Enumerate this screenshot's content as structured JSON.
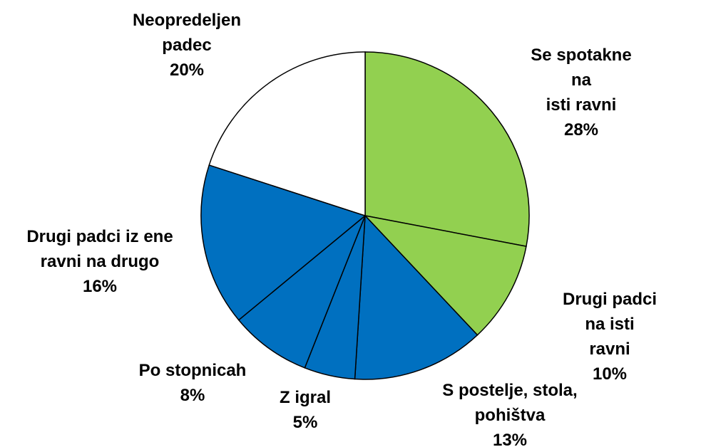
{
  "chart_data": {
    "type": "pie",
    "categories": [
      "Se spotakne na\nisti ravni",
      "Drugi padci na isti\nravni",
      "S postelje, stola,\npohištva",
      "Z igral",
      "Po stopnicah",
      "Drugi padci iz ene\nravni na drugo",
      "Neopredeljen\npadec"
    ],
    "values": [
      28,
      10,
      13,
      5,
      8,
      16,
      20
    ],
    "value_labels": [
      "28%",
      "10%",
      "13%",
      "5%",
      "8%",
      "16%",
      "20%"
    ],
    "colors": [
      "#92d050",
      "#92d050",
      "#0070c0",
      "#0070c0",
      "#0070c0",
      "#0070c0",
      "#ffffff"
    ]
  }
}
